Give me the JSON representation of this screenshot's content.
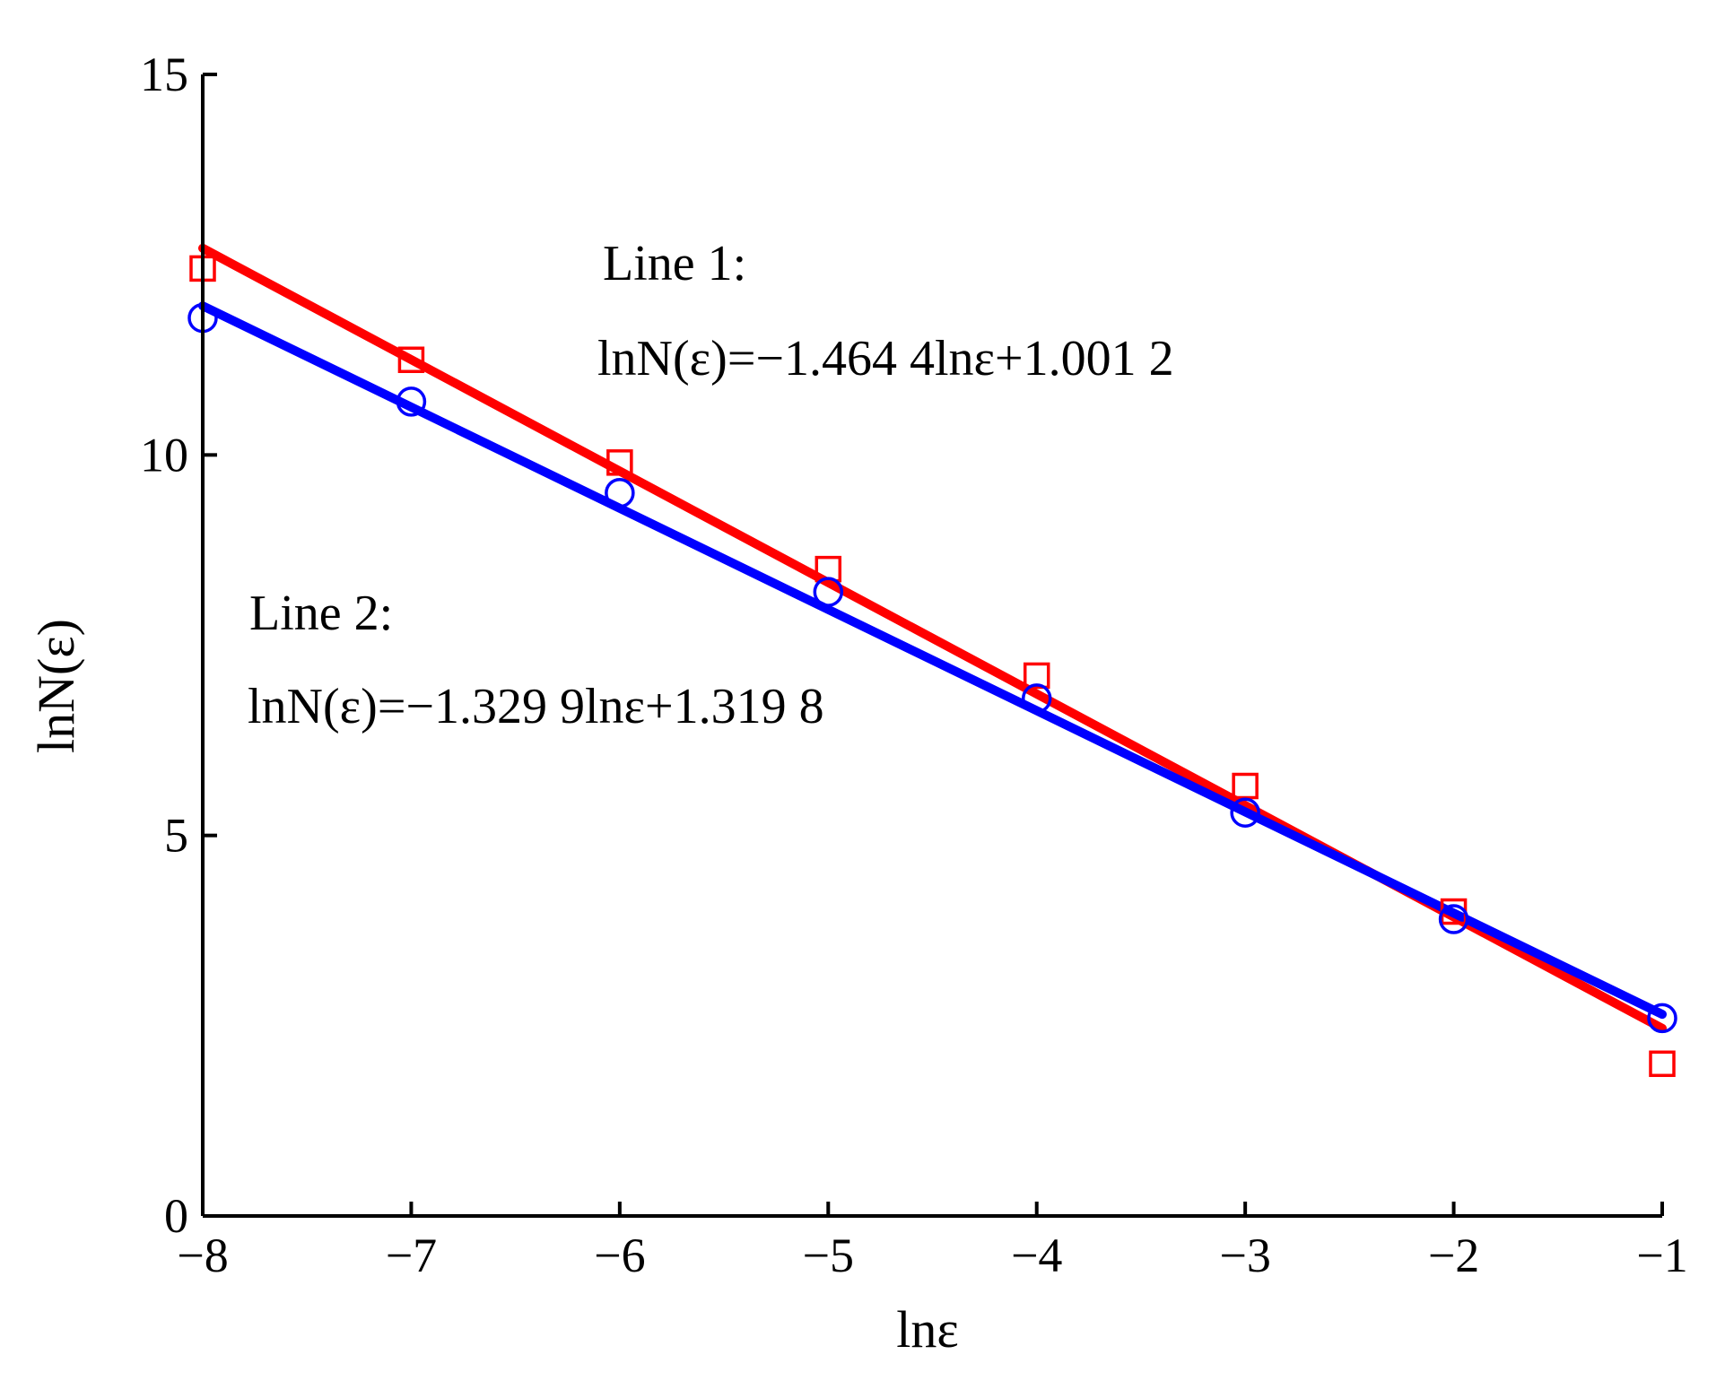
{
  "chart_data": {
    "type": "line",
    "xlabel": "lnε",
    "ylabel": "lnN(ε)",
    "xlim": [
      -8,
      -1
    ],
    "ylim": [
      0,
      15
    ],
    "xticks": [
      -8,
      -7,
      -6,
      -5,
      -4,
      -3,
      -2,
      -1
    ],
    "yticks": [
      0,
      5,
      10,
      15
    ],
    "x_tick_labels": [
      "−8",
      "−7",
      "−6",
      "−5",
      "−4",
      "−3",
      "−2",
      "−1"
    ],
    "y_tick_labels": [
      "0",
      "5",
      "10",
      "15"
    ],
    "grid": false,
    "series": [
      {
        "color": "#ff0000",
        "marker": "square",
        "x": [
          -8,
          -7,
          -6,
          -5,
          -4,
          -3,
          -2,
          -1
        ],
        "y": [
          12.45,
          11.25,
          9.9,
          8.5,
          7.1,
          5.65,
          4.0,
          2.0
        ],
        "fit": {
          "slope": -1.4644,
          "intercept": 1.0012
        }
      },
      {
        "color": "#0000ff",
        "marker": "circle",
        "x": [
          -8,
          -7,
          -6,
          -5,
          -4,
          -3,
          -2,
          -1
        ],
        "y": [
          11.8,
          10.7,
          9.5,
          8.2,
          6.8,
          5.3,
          3.9,
          2.6
        ],
        "fit": {
          "slope": -1.3299,
          "intercept": 1.3198
        }
      }
    ],
    "annotations": [
      {
        "title": "Line  1:",
        "equation": "lnN(ε)=−1.464 4lnε+1.001 2"
      },
      {
        "title": "Line  2:",
        "equation": "lnN(ε)=−1.329 9lnε+1.319 8"
      }
    ]
  }
}
